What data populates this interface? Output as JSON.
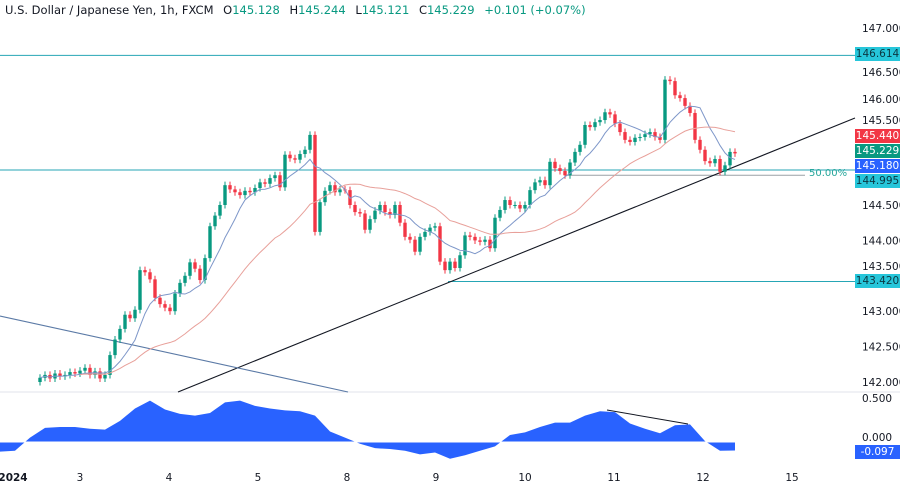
{
  "header": {
    "symbol": "U.S. Dollar / Japanese Yen, 1h, FXCM",
    "o_label": "O",
    "o": "145.128",
    "h_label": "H",
    "h": "145.244",
    "l_label": "L",
    "l": "145.121",
    "c_label": "C",
    "c": "145.229",
    "change": "+0.101 (+0.07%)"
  },
  "colors": {
    "up": "#089981",
    "down": "#f23645",
    "ma_fast": "#7e97c9",
    "ma_slow": "#e8a09a",
    "level": "#26a6b5",
    "osc": "#2962ff",
    "trend": "#131722",
    "channel": "#5b7aa6"
  },
  "price_axis": {
    "ticks": [
      "147.000",
      "146.500",
      "146.000",
      "145.500",
      "144.500",
      "144.000",
      "143.500",
      "143.000",
      "142.500",
      "142.000"
    ],
    "tick_values": [
      147,
      146.5,
      146,
      145.5,
      144.5,
      144,
      143.5,
      143,
      142.5,
      142
    ]
  },
  "price_tags": {
    "level_high": "146.614",
    "ma_slow": "145.440",
    "last": "145.229",
    "ma_fast": "145.180",
    "level_mid": "144.995",
    "level_low": "143.420"
  },
  "fib_label": "50.00%",
  "osc_axis": {
    "ticks": [
      "0.500",
      "0.000"
    ],
    "tag": "-0.097"
  },
  "time_axis": [
    "2024",
    "3",
    "4",
    "5",
    "8",
    "9",
    "10",
    "11",
    "12",
    "15"
  ],
  "chart_data": {
    "type": "candlestick",
    "timeframe": "1h",
    "levels": [
      146.614,
      144.995,
      143.42
    ],
    "fib_50": 144.92,
    "closes": [
      142.06,
      142.1,
      142.05,
      142.12,
      142.08,
      142.1,
      142.14,
      142.12,
      142.16,
      142.2,
      142.1,
      142.15,
      142.05,
      142.1,
      142.38,
      142.6,
      142.75,
      142.95,
      142.9,
      143.02,
      143.58,
      143.55,
      143.45,
      143.19,
      143.1,
      143.05,
      143.0,
      143.25,
      143.4,
      143.5,
      143.69,
      143.6,
      143.44,
      143.75,
      144.2,
      144.35,
      144.5,
      144.78,
      144.72,
      144.68,
      144.64,
      144.7,
      144.68,
      144.74,
      144.82,
      144.8,
      144.88,
      144.92,
      144.75,
      145.21,
      145.16,
      145.14,
      145.22,
      145.28,
      145.49,
      144.12,
      144.54,
      144.7,
      144.78,
      144.68,
      144.72,
      144.71,
      144.5,
      144.4,
      144.38,
      144.15,
      144.3,
      144.42,
      144.5,
      144.4,
      144.36,
      144.5,
      144.25,
      144.05,
      144.01,
      143.84,
      144.05,
      144.12,
      144.18,
      144.2,
      143.7,
      143.58,
      143.7,
      143.61,
      143.79,
      144.07,
      144.05,
      144.0,
      143.98,
      144.01,
      143.89,
      144.32,
      144.43,
      144.57,
      144.5,
      144.5,
      144.45,
      144.5,
      144.71,
      144.82,
      144.85,
      144.78,
      145.11,
      145.02,
      144.98,
      144.92,
      145.1,
      145.25,
      145.35,
      145.63,
      145.6,
      145.67,
      145.7,
      145.81,
      145.78,
      145.65,
      145.53,
      145.42,
      145.39,
      145.45,
      145.46,
      145.5,
      145.53,
      145.46,
      145.42,
      146.27,
      146.25,
      146.05,
      146.01,
      145.9,
      145.8,
      145.42,
      145.28,
      145.12,
      145.09,
      145.15,
      144.97,
      145.06,
      145.25,
      145.229
    ],
    "oscillator": [
      -0.11,
      -0.1,
      0.05,
      0.16,
      0.17,
      0.17,
      0.15,
      0.14,
      0.24,
      0.38,
      0.47,
      0.37,
      0.32,
      0.3,
      0.33,
      0.45,
      0.47,
      0.41,
      0.38,
      0.36,
      0.35,
      0.3,
      0.12,
      0.05,
      -0.02,
      -0.07,
      -0.08,
      -0.1,
      -0.14,
      -0.12,
      -0.19,
      -0.15,
      -0.1,
      -0.05,
      0.08,
      0.11,
      0.17,
      0.22,
      0.22,
      0.3,
      0.35,
      0.34,
      0.21,
      0.15,
      0.1,
      0.19,
      0.2,
      0.01,
      -0.1,
      -0.097
    ],
    "osc_ylim": [
      -0.25,
      0.55
    ],
    "ylim": [
      141.9,
      147.3
    ]
  }
}
